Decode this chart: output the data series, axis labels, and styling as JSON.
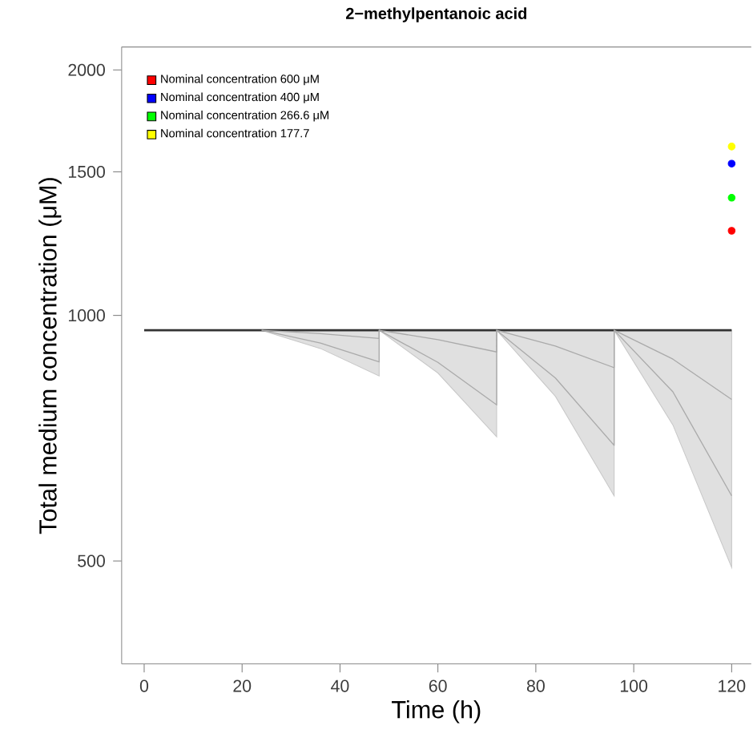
{
  "chart_data": {
    "type": "line",
    "title": "2−methylpentanoic acid",
    "xlabel": "Time (h)",
    "ylabel": "Total medium concentration (μM)",
    "log": "y",
    "xlim": [
      -4.6,
      124
    ],
    "ylim": [
      374,
      2134
    ],
    "xticks": [
      0,
      20,
      40,
      60,
      80,
      100,
      120
    ],
    "yticks": [
      500,
      1000,
      1500,
      2000
    ],
    "legend": "top left",
    "grid": false,
    "series": [
      {
        "color": "#333333",
        "x": [
          0,
          24,
          36,
          48,
          48,
          60,
          72,
          72,
          84,
          96,
          96,
          108,
          120
        ],
        "values": [
          959,
          959,
          959,
          959,
          959,
          959,
          959,
          959,
          959,
          959,
          959,
          959,
          959
        ],
        "lower": [
          959,
          959,
          911,
          843,
          959,
          850,
          710,
          959,
          796,
          601,
          959,
          734,
          491
        ],
        "upper": [
          959,
          959,
          959,
          959,
          959,
          959,
          959,
          959,
          959,
          959,
          959,
          959,
          959
        ]
      },
      {
        "color": "#aaaaaa",
        "x": [
          24,
          36,
          48,
          48,
          60,
          72,
          72,
          84,
          96,
          96,
          108,
          120
        ],
        "values": [
          959,
          925,
          877,
          959,
          876,
          777,
          959,
          838,
          693,
          959,
          806,
          601
        ]
      },
      {
        "color": "#aaaaaa",
        "x": [
          24,
          36,
          48,
          48,
          60,
          72,
          72,
          84,
          96,
          96,
          108,
          120
        ],
        "values": [
          959,
          950,
          937,
          959,
          934,
          902,
          959,
          917,
          863,
          959,
          884,
          789
        ]
      },
      {
        "type": "scatter",
        "name": "Nominal concentration 600 μM",
        "color": "#ff0000",
        "x": [
          120
        ],
        "values": [
          1270
        ]
      },
      {
        "type": "scatter",
        "name": "Nominal concentration 400 μM",
        "color": "#0000ff",
        "x": [
          120
        ],
        "values": [
          1535
        ]
      },
      {
        "type": "scatter",
        "name": "Nominal concentration 266.6 μM",
        "color": "#00ff00",
        "x": [
          120
        ],
        "values": [
          1394
        ]
      },
      {
        "type": "scatter",
        "name": "Nominal concentration 177.7",
        "color": "#ffff00",
        "x": [
          120
        ],
        "values": [
          1611
        ]
      }
    ]
  }
}
